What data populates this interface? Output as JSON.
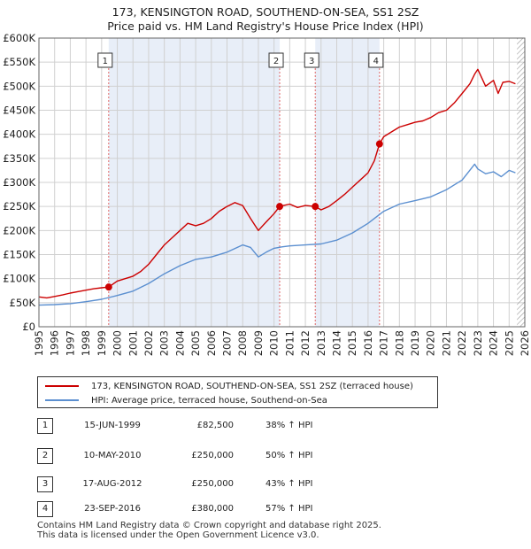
{
  "header": {
    "title_line1": "173, KENSINGTON ROAD, SOUTHEND-ON-SEA, SS1 2SZ",
    "title_line2": "Price paid vs. HM Land Registry's House Price Index (HPI)"
  },
  "legend": {
    "property_label": "173, KENSINGTON ROAD, SOUTHEND-ON-SEA, SS1 2SZ (terraced house)",
    "hpi_label": "HPI: Average price, terraced house, Southend-on-Sea"
  },
  "transactions": [
    {
      "num": "1",
      "date": "15-JUN-1999",
      "price": "£82,500",
      "hpi_change": "38% ↑ HPI"
    },
    {
      "num": "2",
      "date": "10-MAY-2010",
      "price": "£250,000",
      "hpi_change": "50% ↑ HPI"
    },
    {
      "num": "3",
      "date": "17-AUG-2012",
      "price": "£250,000",
      "hpi_change": "43% ↑ HPI"
    },
    {
      "num": "4",
      "date": "23-SEP-2016",
      "price": "£380,000",
      "hpi_change": "57% ↑ HPI"
    }
  ],
  "footer": {
    "line1": "Contains HM Land Registry data © Crown copyright and database right 2025.",
    "line2": "This data is licensed under the Open Government Licence v3.0."
  },
  "colors": {
    "property_line": "#cc0000",
    "hpi_line": "#5b8fd0",
    "shade": "#e8eef8",
    "grid": "#d0d0d0",
    "marker_line": "#e06666"
  },
  "chart_data": {
    "type": "line",
    "title": "173, KENSINGTON ROAD, SOUTHEND-ON-SEA, SS1 2SZ — Price paid vs. HM Land Registry's House Price Index (HPI)",
    "xlim": [
      1995,
      2026
    ],
    "ylim": [
      0,
      600000
    ],
    "x_ticks": [
      1995,
      1996,
      1997,
      1998,
      1999,
      2000,
      2001,
      2002,
      2003,
      2004,
      2005,
      2006,
      2007,
      2008,
      2009,
      2010,
      2011,
      2012,
      2013,
      2014,
      2015,
      2016,
      2017,
      2018,
      2019,
      2020,
      2021,
      2022,
      2023,
      2024,
      2025,
      2026
    ],
    "y_ticks": [
      0,
      50000,
      100000,
      150000,
      200000,
      250000,
      300000,
      350000,
      400000,
      450000,
      500000,
      550000,
      600000
    ],
    "y_tick_labels": [
      "£0",
      "£50K",
      "£100K",
      "£150K",
      "£200K",
      "£250K",
      "£300K",
      "£350K",
      "£400K",
      "£450K",
      "£500K",
      "£550K",
      "£600K"
    ],
    "shaded_ranges": [
      [
        1999.45,
        2010.36
      ],
      [
        2012.63,
        2016.73
      ]
    ],
    "hatched_from": 2025.5,
    "sales": [
      {
        "label": "1",
        "x": 1999.45,
        "y": 82500
      },
      {
        "label": "2",
        "x": 2010.36,
        "y": 250000
      },
      {
        "label": "3",
        "x": 2012.63,
        "y": 250000
      },
      {
        "label": "4",
        "x": 2016.73,
        "y": 380000
      }
    ],
    "series": [
      {
        "name": "173, KENSINGTON ROAD, SOUTHEND-ON-SEA, SS1 2SZ (terraced house)",
        "x": [
          1995,
          1995.5,
          1996,
          1996.5,
          1997,
          1997.5,
          1998,
          1998.5,
          1999,
          1999.45,
          2000,
          2000.5,
          2001,
          2001.5,
          2002,
          2002.5,
          2003,
          2003.5,
          2004,
          2004.5,
          2005,
          2005.5,
          2006,
          2006.5,
          2007,
          2007.5,
          2008,
          2008.5,
          2009,
          2009.5,
          2010,
          2010.36,
          2010.6,
          2011,
          2011.5,
          2012,
          2012.63,
          2013,
          2013.5,
          2014,
          2014.5,
          2015,
          2015.5,
          2016,
          2016.4,
          2016.73,
          2017,
          2017.5,
          2018,
          2018.5,
          2019,
          2019.5,
          2020,
          2020.5,
          2021,
          2021.5,
          2022,
          2022.5,
          2022.8,
          2023,
          2023.5,
          2024,
          2024.3,
          2024.6,
          2025,
          2025.4
        ],
        "values": [
          62000,
          60000,
          63000,
          66000,
          70000,
          73000,
          76000,
          79000,
          81000,
          82500,
          95000,
          100000,
          105000,
          115000,
          130000,
          150000,
          170000,
          185000,
          200000,
          215000,
          210000,
          215000,
          225000,
          240000,
          250000,
          258000,
          252000,
          225000,
          200000,
          218000,
          235000,
          250000,
          252000,
          255000,
          248000,
          252000,
          250000,
          243000,
          250000,
          262000,
          275000,
          290000,
          305000,
          320000,
          345000,
          380000,
          395000,
          405000,
          415000,
          420000,
          425000,
          428000,
          435000,
          445000,
          450000,
          465000,
          485000,
          505000,
          525000,
          535000,
          500000,
          512000,
          485000,
          508000,
          510000,
          505000
        ]
      },
      {
        "name": "HPI: Average price, terraced house, Southend-on-Sea",
        "x": [
          1995,
          1996,
          1997,
          1998,
          1999,
          2000,
          2001,
          2002,
          2003,
          2004,
          2005,
          2006,
          2007,
          2008,
          2008.5,
          2009,
          2009.5,
          2010,
          2010.5,
          2011,
          2012,
          2013,
          2014,
          2015,
          2016,
          2017,
          2018,
          2019,
          2020,
          2021,
          2022,
          2022.8,
          2023,
          2023.5,
          2024,
          2024.5,
          2025,
          2025.4
        ],
        "values": [
          45000,
          46000,
          48000,
          52000,
          57000,
          65000,
          74000,
          90000,
          110000,
          127000,
          140000,
          145000,
          155000,
          170000,
          165000,
          145000,
          155000,
          163000,
          166000,
          168000,
          170000,
          172000,
          180000,
          195000,
          215000,
          240000,
          255000,
          262000,
          270000,
          285000,
          305000,
          338000,
          328000,
          318000,
          322000,
          312000,
          325000,
          320000
        ]
      }
    ]
  }
}
